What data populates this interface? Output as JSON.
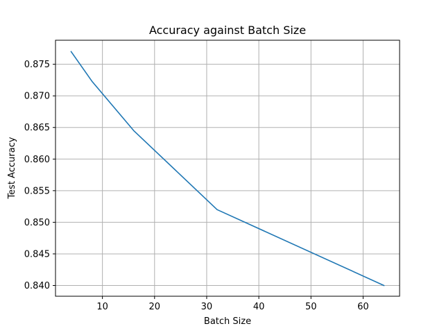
{
  "chart_data": {
    "type": "line",
    "title": "Accuracy against Batch Size",
    "xlabel": "Batch Size",
    "ylabel": "Test Accuracy",
    "xlim": [
      1,
      67
    ],
    "ylim": [
      0.8383,
      0.8788
    ],
    "xticks": [
      10,
      20,
      30,
      40,
      50,
      60
    ],
    "xtick_labels": [
      "10",
      "20",
      "30",
      "40",
      "50",
      "60"
    ],
    "yticks": [
      0.84,
      0.845,
      0.85,
      0.855,
      0.86,
      0.865,
      0.87,
      0.875
    ],
    "ytick_labels": [
      "0.840",
      "0.845",
      "0.850",
      "0.855",
      "0.860",
      "0.865",
      "0.870",
      "0.875"
    ],
    "grid": true,
    "series": [
      {
        "color": "#1f77b4",
        "x": [
          4,
          8,
          16,
          32,
          64
        ],
        "y": [
          0.877,
          0.8723,
          0.8645,
          0.852,
          0.84
        ]
      }
    ]
  }
}
